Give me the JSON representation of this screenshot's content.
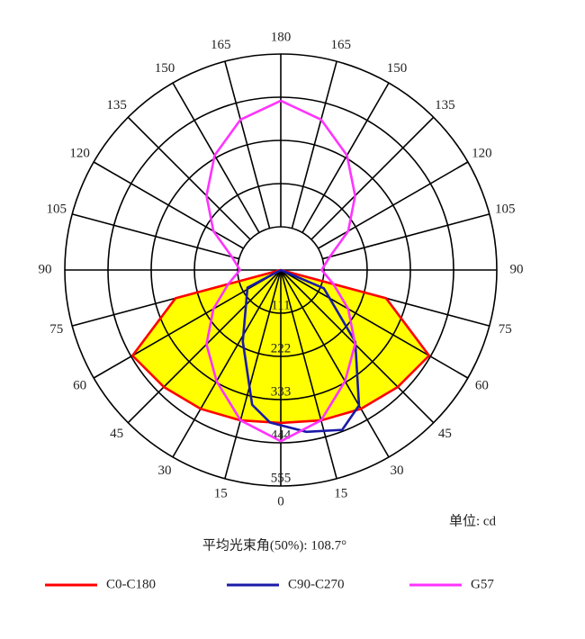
{
  "chart_data": {
    "type": "polar",
    "rlim": [
      0,
      555
    ],
    "rticks": [
      111,
      222,
      333,
      444,
      555
    ],
    "angle_ticks": [
      0,
      15,
      30,
      45,
      60,
      75,
      90,
      105,
      120,
      135,
      150,
      165,
      180
    ],
    "unit_label": "单位: cd",
    "note": "平均光束角(50%): 108.7°",
    "series": [
      {
        "name": "C0-C180",
        "color": "#ff0000",
        "fill": "#ffff00",
        "angles": [
          -90,
          -75,
          -60,
          -45,
          -30,
          -15,
          0,
          15,
          30,
          45,
          60,
          75,
          90
        ],
        "values": [
          0,
          280,
          440,
          425,
          412,
          400,
          393,
          400,
          412,
          425,
          440,
          280,
          0
        ]
      },
      {
        "name": "C90-C270",
        "color": "#1a1aa8",
        "angles": [
          -90,
          -62,
          -28,
          -12,
          -4,
          9,
          21,
          30,
          46,
          67,
          90
        ],
        "values": [
          0,
          97,
          208,
          354,
          393,
          421,
          440,
          402,
          266,
          120,
          0
        ]
      },
      {
        "name": "G57",
        "color": "#ff33ff",
        "angles": [
          -180,
          -165,
          -150,
          -135,
          -120,
          -105,
          -90,
          -75,
          -60,
          -45,
          -30,
          -15,
          0,
          15,
          30,
          45,
          60,
          75,
          90,
          105,
          120,
          135,
          150,
          165,
          180
        ],
        "values": [
          435,
          400,
          340,
          270,
          200,
          130,
          105,
          140,
          200,
          270,
          330,
          400,
          440,
          400,
          330,
          270,
          200,
          140,
          105,
          130,
          200,
          270,
          340,
          400,
          435
        ]
      }
    ]
  }
}
